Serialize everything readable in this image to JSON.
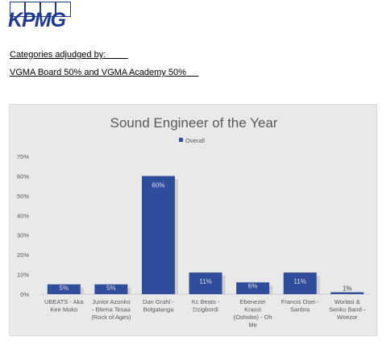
{
  "header": {
    "logo_text": "KPMG",
    "categories_label": "Categories adjudged by:",
    "categories_value": "VGMA Board 50% and VGMA Academy 50%"
  },
  "chart_data": {
    "type": "bar",
    "title": "Sound Engineer of the Year",
    "legend": [
      "Overall"
    ],
    "legend_position": "top",
    "series": [
      {
        "name": "Overall",
        "values": [
          5,
          5,
          60,
          11,
          6,
          11,
          1
        ]
      }
    ],
    "categories": [
      [
        "UBEATS - Aka",
        "Kee Moko"
      ],
      [
        "Junior Azonko",
        "- Blema Tesaa",
        "(Rock of Ages)"
      ],
      [
        "Dan Grahl -",
        "Bolgatanga"
      ],
      [
        "Kc Beats -",
        "Dzigbordi"
      ],
      [
        "Ebenezer",
        "Krassi",
        "(Oshobo) - Oh",
        "Me"
      ],
      [
        "Francis Osei -",
        "Sanbra"
      ],
      [
        "Worlasi &",
        "Senku Band -",
        "Woezor"
      ]
    ],
    "data_labels": [
      "5%",
      "5%",
      "60%",
      "11%",
      "6%",
      "11%",
      "1%"
    ],
    "y_ticks": [
      "0%",
      "10%",
      "20%",
      "30%",
      "40%",
      "50%",
      "60%",
      "70%"
    ],
    "ylim": [
      0,
      70
    ],
    "grid": false,
    "colors": {
      "bar": "#2f4d9b",
      "background": "#e9e9e9",
      "axis": "#cfcfcf",
      "text": "#595959"
    }
  }
}
